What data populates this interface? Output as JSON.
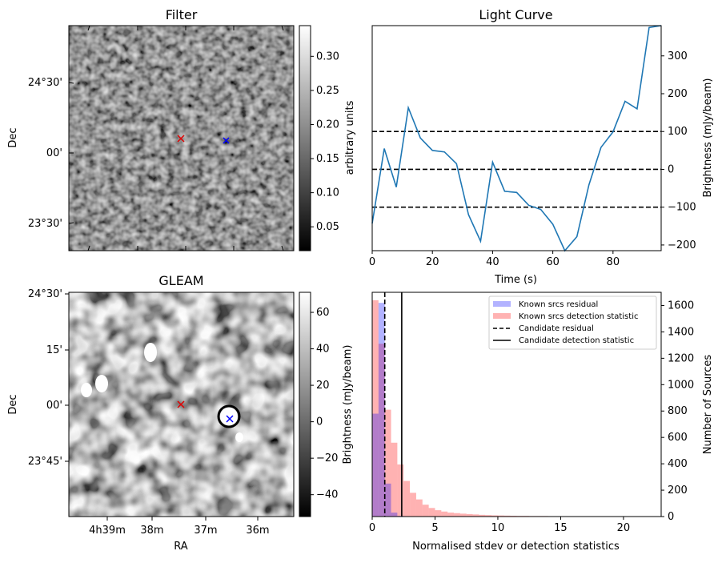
{
  "panels": {
    "filter": {
      "title": "Filter",
      "ylabel": "Dec",
      "y_ticks": [
        "24°30'",
        "00'",
        "23°30'"
      ],
      "colorbar": {
        "label": "arbitrary units",
        "min": 0.015,
        "max": 0.345,
        "ticks": [
          0.05,
          0.1,
          0.15,
          0.2,
          0.25,
          0.3
        ],
        "tick_labels": [
          "0.05",
          "0.10",
          "0.15",
          "0.20",
          "0.25",
          "0.30"
        ]
      },
      "markers": [
        {
          "symbol": "x",
          "color": "#e00000"
        },
        {
          "symbol": "x",
          "color": "#0000ff"
        }
      ]
    },
    "gleam": {
      "title": "GLEAM",
      "xlabel": "RA",
      "ylabel": "Dec",
      "x_ticks": [
        "4h39m",
        "38m",
        "37m",
        "36m"
      ],
      "y_ticks": [
        "24°30'",
        "15'",
        "00'",
        "23°45'"
      ],
      "colorbar": {
        "label": "Brightness (mJy/beam)",
        "min": -52,
        "max": 71,
        "ticks": [
          -40,
          -20,
          0,
          20,
          40,
          60
        ],
        "tick_labels": [
          "−40",
          "−20",
          "0",
          "20",
          "40",
          "60"
        ]
      },
      "markers": [
        {
          "symbol": "x",
          "color": "#e00000"
        },
        {
          "symbol": "x",
          "color": "#0000ff"
        }
      ]
    }
  },
  "chart_data": [
    {
      "type": "line",
      "title": "Light Curve",
      "xlabel": "Time (s)",
      "ylabel": "Brightness (mJy/beam)",
      "xlim": [
        0,
        96
      ],
      "ylim": [
        -215,
        380
      ],
      "x_ticks": [
        0,
        20,
        40,
        60,
        80
      ],
      "y_ticks": [
        -200,
        -100,
        0,
        100,
        200,
        300
      ],
      "y_tick_labels": [
        "−200",
        "−100",
        "0",
        "100",
        "200",
        "300"
      ],
      "color": "#1f77b4",
      "x": [
        0,
        4,
        8,
        12,
        16,
        20,
        24,
        28,
        32,
        36,
        40,
        44,
        48,
        52,
        56,
        60,
        64,
        68,
        72,
        76,
        80,
        84,
        88,
        92,
        96
      ],
      "y": [
        -143,
        55,
        -47,
        163,
        83,
        50,
        46,
        15,
        -120,
        -190,
        19,
        -58,
        -61,
        -95,
        -106,
        -145,
        -215,
        -178,
        -41,
        58,
        99,
        180,
        160,
        375,
        384
      ],
      "hlines": [
        {
          "y": 100,
          "style": "dashed",
          "color": "#000000"
        },
        {
          "y": 0,
          "style": "dashed",
          "color": "#000000"
        },
        {
          "y": -100,
          "style": "dashed",
          "color": "#000000"
        }
      ]
    },
    {
      "type": "histogram",
      "xlabel": "Normalised stdev or detection statistics",
      "ylabel": "Number of Sources",
      "xlim": [
        0,
        23
      ],
      "ylim": [
        0,
        1700
      ],
      "x_ticks": [
        0,
        5,
        10,
        15,
        20
      ],
      "y_ticks": [
        0,
        200,
        400,
        600,
        800,
        1000,
        1200,
        1400,
        1600
      ],
      "bin_width": 0.5,
      "series": [
        {
          "name": "Known srcs residual",
          "color": "#0000ff",
          "alpha": 0.3,
          "counts": [
            780,
            1620,
            250,
            30,
            5,
            0,
            0,
            0,
            0,
            0,
            0,
            0,
            0,
            0,
            0,
            0,
            0,
            0,
            0,
            0,
            0,
            0,
            0,
            0,
            0,
            0,
            0,
            0,
            0,
            0,
            0,
            0,
            0,
            0,
            0,
            0,
            0,
            0,
            0,
            0,
            0,
            0,
            0,
            0,
            0,
            0
          ]
        },
        {
          "name": "Known srcs detection statistic",
          "color": "#ff0000",
          "alpha": 0.3,
          "counts": [
            1640,
            1310,
            810,
            560,
            395,
            270,
            180,
            130,
            90,
            65,
            48,
            38,
            30,
            26,
            22,
            19,
            16,
            13,
            11,
            9,
            8,
            7,
            6,
            5,
            5,
            4,
            4,
            4,
            3,
            3,
            3,
            3,
            2,
            2,
            2,
            2,
            2,
            1,
            1,
            1,
            1,
            1,
            1,
            1,
            1,
            1
          ]
        }
      ],
      "vlines": [
        {
          "name": "Candidate residual",
          "x": 1.0,
          "style": "dashed",
          "color": "#000000"
        },
        {
          "name": "Candidate detection statistic",
          "x": 2.35,
          "style": "solid",
          "color": "#000000"
        }
      ]
    }
  ]
}
